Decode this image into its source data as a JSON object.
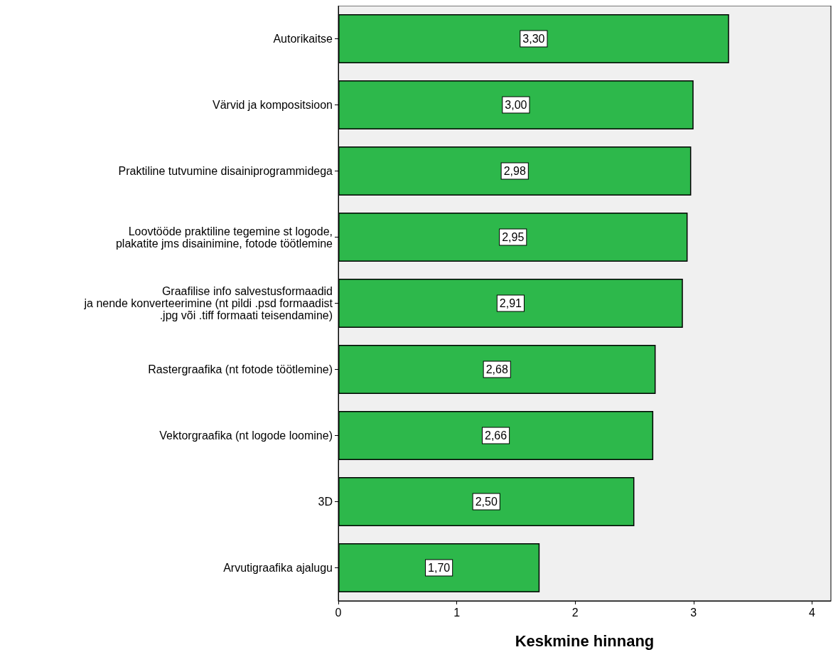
{
  "chart_data": {
    "type": "bar",
    "orientation": "horizontal",
    "xlabel": "Keskmine hinnang",
    "categories": [
      "Autorikaitse",
      "Värvid ja kompositsioon",
      "Praktiline tutvumine disainiprogrammidega",
      "Loovtööde praktiline tegemine st logode,\nplakatite jms disainimine, fotode töötlemine",
      "Graafilise info salvestusformaadid\nja nende konverteerimine (nt pildi .psd formaadist\n.jpg või .tiff formaati teisendamine)",
      "Rastergraafika (nt fotode töötlemine)",
      "Vektorgraafika (nt logode loomine)",
      "3D",
      "Arvutigraafika ajalugu"
    ],
    "values": [
      3.3,
      3.0,
      2.98,
      2.95,
      2.91,
      2.68,
      2.66,
      2.5,
      1.7
    ],
    "value_labels": [
      "3,30",
      "3,00",
      "2,98",
      "2,95",
      "2,91",
      "2,68",
      "2,66",
      "2,50",
      "1,70"
    ],
    "color": "#2db84b",
    "xlim": [
      0,
      4.16
    ],
    "xticks": [
      0,
      1,
      2,
      3,
      4
    ],
    "grid": false
  }
}
